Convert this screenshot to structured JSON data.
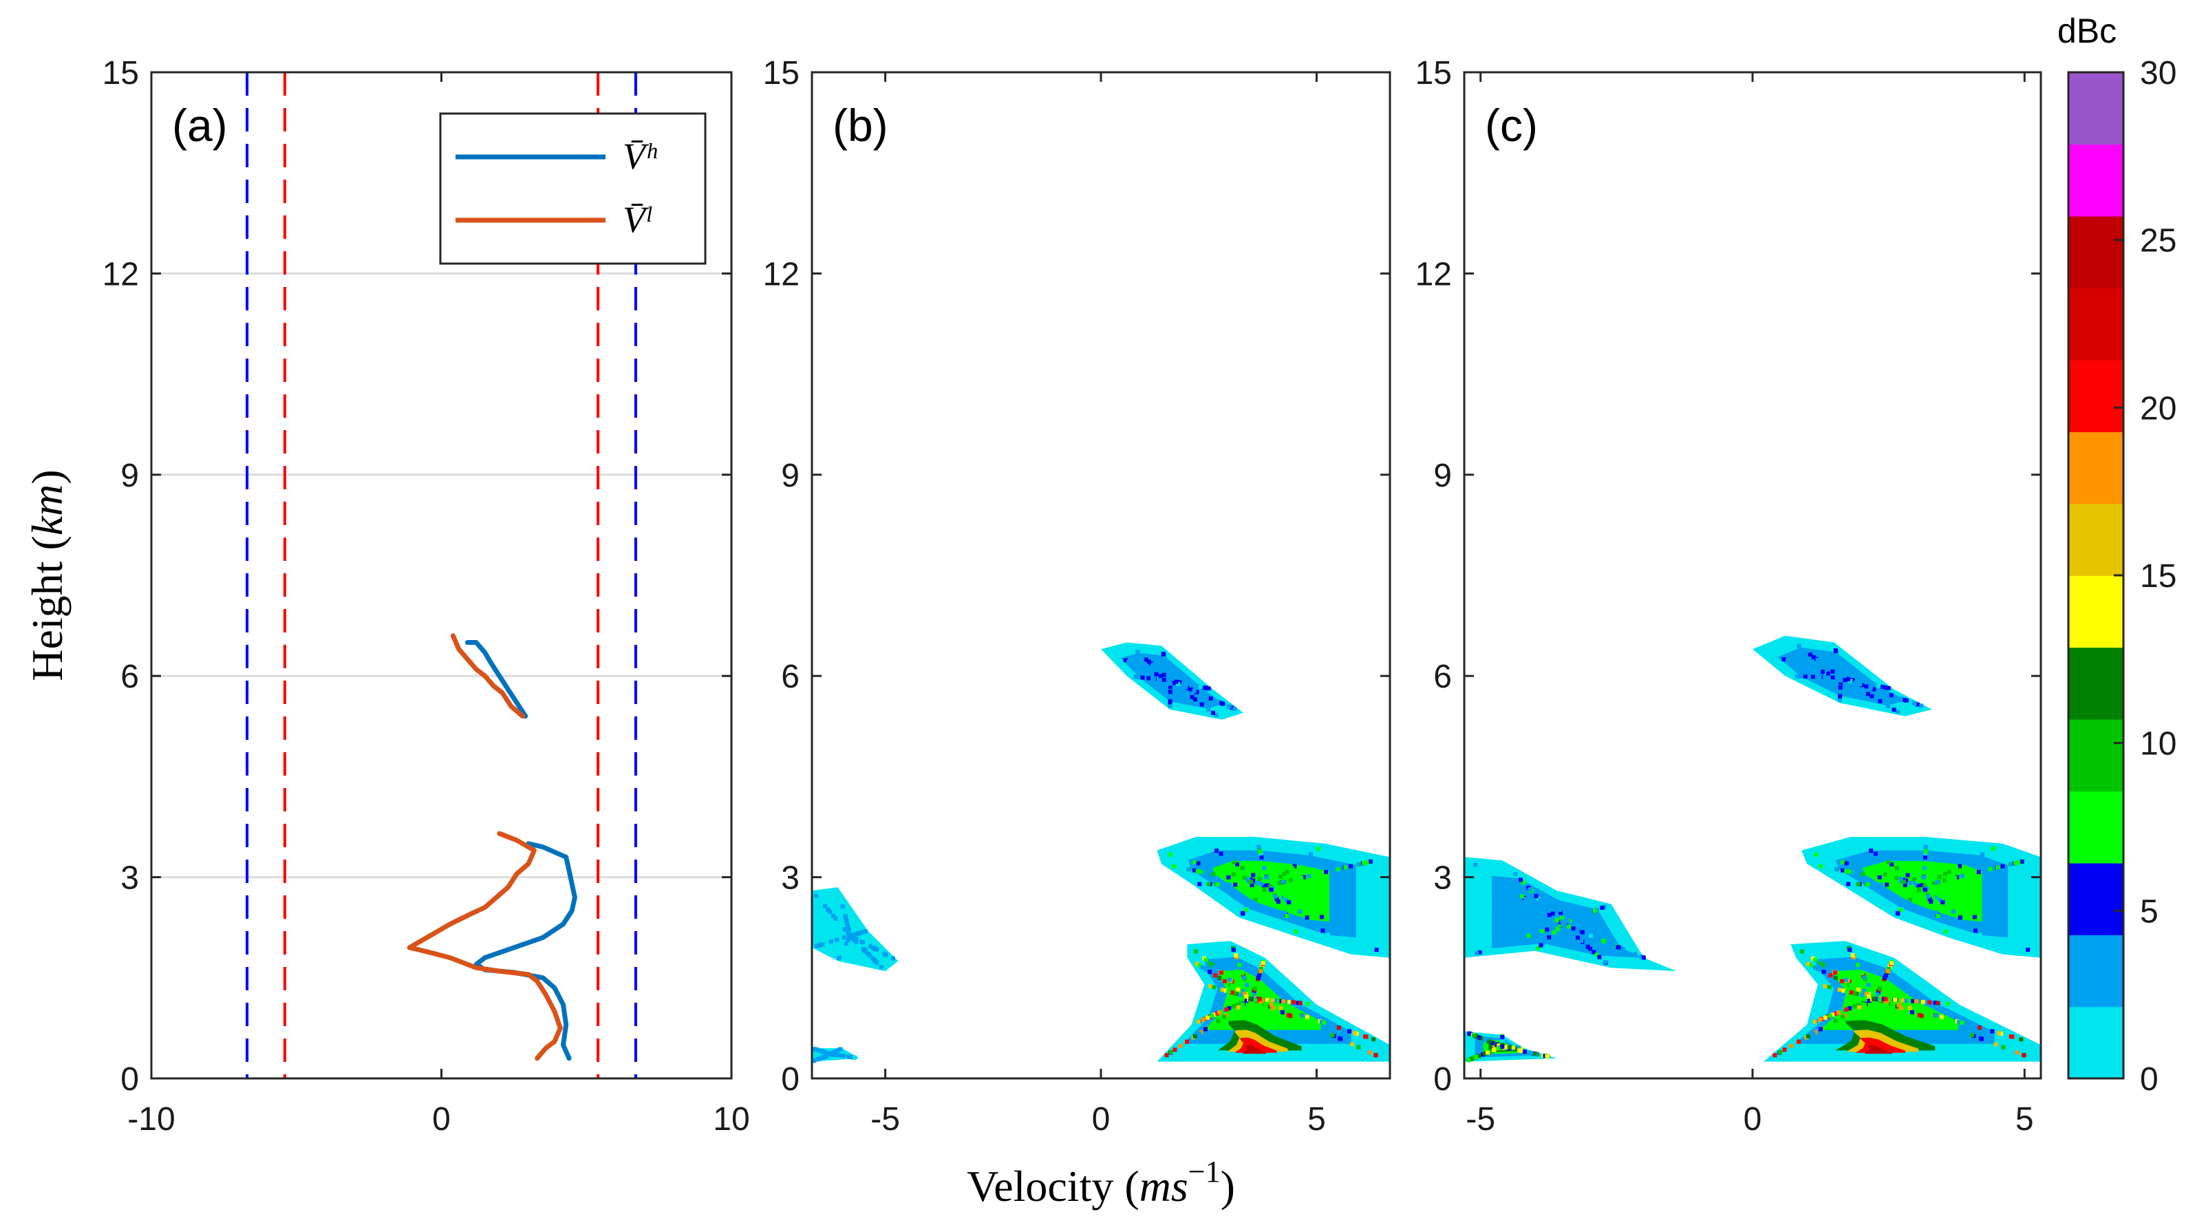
{
  "chart_data": [
    {
      "type": "line",
      "panel": "(a)",
      "xlim": [
        -10,
        10
      ],
      "ylim": [
        0,
        15
      ],
      "xticks": [
        "-10",
        "0",
        "10"
      ],
      "yticks": [
        "0",
        "3",
        "6",
        "9",
        "12",
        "15"
      ],
      "ylabel": "Height (km)",
      "grid_y": [
        3,
        6,
        9,
        12
      ],
      "legend": [
        "V̄ʰ",
        "V̄ˡ"
      ],
      "series": [
        {
          "name": "V̄ʰ",
          "color": "#0072BD",
          "segments": [
            [
              [
                2.9,
                5.4
              ],
              [
                2.6,
                5.6
              ],
              [
                2.3,
                5.8
              ],
              [
                2.0,
                6.0
              ],
              [
                1.7,
                6.2
              ],
              [
                1.5,
                6.35
              ],
              [
                1.2,
                6.5
              ],
              [
                0.9,
                6.5
              ]
            ],
            [
              [
                4.4,
                0.3
              ],
              [
                4.2,
                0.5
              ],
              [
                4.3,
                0.8
              ],
              [
                4.2,
                1.1
              ],
              [
                3.9,
                1.35
              ],
              [
                3.5,
                1.5
              ],
              [
                2.5,
                1.58
              ],
              [
                1.5,
                1.62
              ],
              [
                1.2,
                1.7
              ],
              [
                1.5,
                1.8
              ],
              [
                2.5,
                1.95
              ],
              [
                3.5,
                2.1
              ],
              [
                4.2,
                2.3
              ],
              [
                4.5,
                2.5
              ],
              [
                4.6,
                2.7
              ],
              [
                4.5,
                2.9
              ],
              [
                4.4,
                3.1
              ],
              [
                4.3,
                3.3
              ],
              [
                3.5,
                3.45
              ],
              [
                3.0,
                3.5
              ]
            ]
          ]
        },
        {
          "name": "V̄ˡ",
          "color": "#D95319",
          "segments": [
            [
              [
                0.4,
                6.6
              ],
              [
                0.6,
                6.4
              ],
              [
                0.9,
                6.25
              ],
              [
                1.2,
                6.1
              ],
              [
                1.5,
                6.0
              ],
              [
                1.8,
                5.85
              ],
              [
                2.1,
                5.75
              ],
              [
                2.4,
                5.55
              ],
              [
                2.8,
                5.4
              ]
            ],
            [
              [
                3.3,
                0.3
              ],
              [
                3.6,
                0.45
              ],
              [
                3.9,
                0.55
              ],
              [
                4.1,
                0.75
              ],
              [
                3.9,
                1.0
              ],
              [
                3.6,
                1.25
              ],
              [
                3.3,
                1.45
              ],
              [
                3.0,
                1.55
              ],
              [
                2.0,
                1.6
              ],
              [
                1.2,
                1.65
              ],
              [
                0.3,
                1.8
              ],
              [
                -0.6,
                1.9
              ],
              [
                -1.1,
                1.95
              ],
              [
                -0.5,
                2.1
              ],
              [
                0.3,
                2.3
              ],
              [
                1.0,
                2.45
              ],
              [
                1.5,
                2.55
              ],
              [
                1.9,
                2.7
              ],
              [
                2.3,
                2.85
              ],
              [
                2.6,
                3.05
              ],
              [
                3.0,
                3.2
              ],
              [
                3.2,
                3.4
              ],
              [
                2.6,
                3.55
              ],
              [
                2.0,
                3.65
              ]
            ]
          ]
        }
      ],
      "reference_lines": [
        {
          "x": -6.7,
          "color": "#0000FF",
          "style": "dashed"
        },
        {
          "x": -5.4,
          "color": "#FF0000",
          "style": "dashed"
        },
        {
          "x": 5.4,
          "color": "#FF0000",
          "style": "dashed"
        },
        {
          "x": 6.7,
          "color": "#0000FF",
          "style": "dashed"
        }
      ]
    },
    {
      "type": "heatmap",
      "panel": "(b)",
      "xlim": [
        -6.7,
        6.7
      ],
      "ylim": [
        0,
        15
      ],
      "xticks": [
        "-5",
        "0",
        "5"
      ],
      "yticks": [
        "0",
        "3",
        "6",
        "9",
        "12",
        "15"
      ],
      "xlabel": "Velocity (ms⁻¹)",
      "regions": [
        {
          "polygon": [
            [
              0.0,
              6.4
            ],
            [
              0.6,
              6.5
            ],
            [
              1.4,
              6.45
            ],
            [
              2.6,
              5.8
            ],
            [
              3.3,
              5.45
            ],
            [
              2.8,
              5.35
            ],
            [
              1.6,
              5.5
            ],
            [
              0.6,
              6.0
            ]
          ],
          "peak_dBc": 5
        },
        {
          "polygon": [
            [
              1.3,
              3.4
            ],
            [
              2.2,
              3.6
            ],
            [
              3.6,
              3.6
            ],
            [
              5.2,
              3.5
            ],
            [
              6.7,
              3.3
            ],
            [
              6.7,
              1.8
            ],
            [
              5.8,
              1.85
            ],
            [
              4.6,
              2.1
            ],
            [
              3.2,
              2.4
            ],
            [
              2.1,
              2.9
            ],
            [
              1.4,
              3.2
            ]
          ],
          "peak_dBc": 10
        },
        {
          "polygon": [
            [
              -6.7,
              2.8
            ],
            [
              -6.1,
              2.85
            ],
            [
              -5.4,
              2.2
            ],
            [
              -4.7,
              1.75
            ],
            [
              -5.0,
              1.6
            ],
            [
              -6.1,
              1.75
            ],
            [
              -6.7,
              1.95
            ]
          ],
          "peak_dBc": 4
        },
        {
          "polygon": [
            [
              2.0,
              2.0
            ],
            [
              3.0,
              2.05
            ],
            [
              3.8,
              1.8
            ],
            [
              5.0,
              1.1
            ],
            [
              6.7,
              0.5
            ],
            [
              6.7,
              0.25
            ],
            [
              1.3,
              0.25
            ],
            [
              2.1,
              0.8
            ],
            [
              2.4,
              1.4
            ],
            [
              2.0,
              1.8
            ]
          ],
          "peak_dBc": 25
        },
        {
          "polygon": [
            [
              -6.7,
              0.45
            ],
            [
              -6.0,
              0.45
            ],
            [
              -5.6,
              0.3
            ],
            [
              -6.7,
              0.25
            ]
          ],
          "peak_dBc": 3
        }
      ]
    },
    {
      "type": "heatmap",
      "panel": "(c)",
      "xlim": [
        -5.3,
        5.3
      ],
      "ylim": [
        0,
        15
      ],
      "xticks": [
        "-5",
        "0",
        "5"
      ],
      "yticks": [
        "0",
        "3",
        "6",
        "9",
        "12",
        "15"
      ],
      "regions": [
        {
          "polygon": [
            [
              0.0,
              6.4
            ],
            [
              0.6,
              6.6
            ],
            [
              1.5,
              6.5
            ],
            [
              2.6,
              5.8
            ],
            [
              3.3,
              5.5
            ],
            [
              2.8,
              5.4
            ],
            [
              1.6,
              5.6
            ],
            [
              0.6,
              6.0
            ]
          ],
          "peak_dBc": 5
        },
        {
          "polygon": [
            [
              0.9,
              3.4
            ],
            [
              1.8,
              3.6
            ],
            [
              3.2,
              3.6
            ],
            [
              4.6,
              3.5
            ],
            [
              5.3,
              3.3
            ],
            [
              5.3,
              1.8
            ],
            [
              4.6,
              1.85
            ],
            [
              3.6,
              2.1
            ],
            [
              2.6,
              2.4
            ],
            [
              1.6,
              2.9
            ],
            [
              1.0,
              3.2
            ]
          ],
          "peak_dBc": 10
        },
        {
          "polygon": [
            [
              -5.3,
              3.3
            ],
            [
              -4.6,
              3.25
            ],
            [
              -3.6,
              2.8
            ],
            [
              -2.6,
              2.6
            ],
            [
              -2.0,
              1.8
            ],
            [
              -1.4,
              1.6
            ],
            [
              -2.6,
              1.65
            ],
            [
              -4.0,
              1.9
            ],
            [
              -5.3,
              1.8
            ]
          ],
          "peak_dBc": 7
        },
        {
          "polygon": [
            [
              0.7,
              2.0
            ],
            [
              1.7,
              2.05
            ],
            [
              2.6,
              1.8
            ],
            [
              3.8,
              1.1
            ],
            [
              5.3,
              0.5
            ],
            [
              5.3,
              0.25
            ],
            [
              0.2,
              0.25
            ],
            [
              1.0,
              0.8
            ],
            [
              1.2,
              1.4
            ],
            [
              0.8,
              1.8
            ]
          ],
          "peak_dBc": 25
        },
        {
          "polygon": [
            [
              -5.3,
              0.7
            ],
            [
              -4.6,
              0.65
            ],
            [
              -4.2,
              0.45
            ],
            [
              -3.6,
              0.3
            ],
            [
              -5.3,
              0.25
            ]
          ],
          "peak_dBc": 16
        }
      ]
    },
    {
      "type": "colorbar",
      "title": "dBc",
      "range": [
        0,
        30
      ],
      "ticks": [
        "0",
        "5",
        "10",
        "15",
        "20",
        "25",
        "30"
      ],
      "colors": [
        "#00E5EE",
        "#00A0F0",
        "#0000F5",
        "#00FF00",
        "#00C400",
        "#008000",
        "#FFFF00",
        "#E6C400",
        "#FF9400",
        "#FF0000",
        "#D60000",
        "#C00000",
        "#FF00FF",
        "#9955CC"
      ]
    }
  ]
}
